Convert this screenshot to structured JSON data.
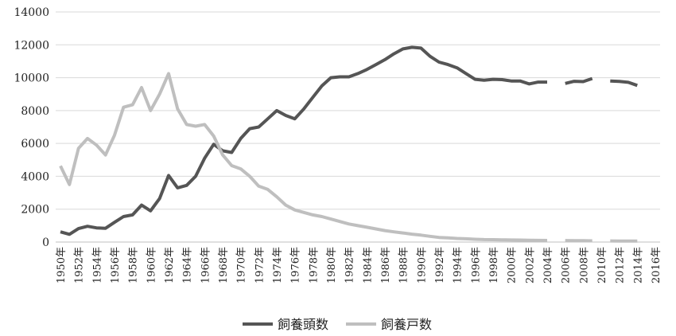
{
  "chart_data": {
    "type": "line",
    "title": "",
    "xlabel": "",
    "ylabel": "",
    "ylim": [
      0,
      14000
    ],
    "yticks": [
      0,
      2000,
      4000,
      6000,
      8000,
      10000,
      12000,
      14000
    ],
    "ytick_labels": [
      "0",
      "2000",
      "4000",
      "6000",
      "8000",
      "10000",
      "12000",
      "14000"
    ],
    "x": [
      "1950年",
      "1951年",
      "1952年",
      "1953年",
      "1954年",
      "1955年",
      "1956年",
      "1957年",
      "1958年",
      "1959年",
      "1960年",
      "1961年",
      "1962年",
      "1963年",
      "1964年",
      "1965年",
      "1966年",
      "1967年",
      "1968年",
      "1969年",
      "1970年",
      "1971年",
      "1972年",
      "1973年",
      "1974年",
      "1975年",
      "1976年",
      "1977年",
      "1978年",
      "1979年",
      "1980年",
      "1981年",
      "1982年",
      "1983年",
      "1984年",
      "1985年",
      "1986年",
      "1987年",
      "1988年",
      "1989年",
      "1990年",
      "1991年",
      "1992年",
      "1993年",
      "1994年",
      "1995年",
      "1996年",
      "1997年",
      "1998年",
      "1999年",
      "2000年",
      "2001年",
      "2002年",
      "2003年",
      "2004年",
      "2005年",
      "2006年",
      "2007年",
      "2008年",
      "2009年",
      "2010年",
      "2011年",
      "2012年",
      "2013年",
      "2014年",
      "2015年",
      "2016年"
    ],
    "xtick_labels": [
      "1950年",
      "1952年",
      "1954年",
      "1956年",
      "1958年",
      "1960年",
      "1962年",
      "1964年",
      "1966年",
      "1968年",
      "1970年",
      "1972年",
      "1974年",
      "1976年",
      "1978年",
      "1980年",
      "1982年",
      "1984年",
      "1986年",
      "1988年",
      "1990年",
      "1992年",
      "1994年",
      "1996年",
      "1998年",
      "2000年",
      "2002年",
      "2004年",
      "2006年",
      "2008年",
      "2010年",
      "2012年",
      "2014年",
      "2016年"
    ],
    "series": [
      {
        "name": "飼養頭数",
        "color": "#555555",
        "values": [
          620,
          470,
          820,
          960,
          860,
          840,
          1200,
          1550,
          1650,
          2250,
          1900,
          2650,
          4050,
          3300,
          3450,
          4000,
          5100,
          5950,
          5550,
          5450,
          6300,
          6900,
          7000,
          7500,
          8000,
          7700,
          7500,
          8100,
          8800,
          9500,
          10000,
          10050,
          10050,
          10250,
          10500,
          10800,
          11100,
          11450,
          11750,
          11850,
          11800,
          11300,
          10950,
          10800,
          10600,
          10250,
          9900,
          9850,
          9900,
          9880,
          9800,
          9800,
          9620,
          9730,
          9730,
          null,
          9650,
          9780,
          9760,
          9950,
          null,
          9800,
          9770,
          9720,
          9530,
          null,
          null
        ]
      },
      {
        "name": "飼養戸数",
        "color": "#bfbfbf",
        "values": [
          4630,
          3500,
          5700,
          6300,
          5900,
          5300,
          6500,
          8200,
          8350,
          9400,
          8000,
          9000,
          10250,
          8100,
          7150,
          7050,
          7150,
          6450,
          5300,
          4650,
          4450,
          4000,
          3400,
          3200,
          2750,
          2250,
          1950,
          1800,
          1650,
          1550,
          1400,
          1250,
          1100,
          1000,
          900,
          800,
          700,
          620,
          550,
          480,
          420,
          350,
          280,
          250,
          220,
          200,
          170,
          150,
          145,
          135,
          125,
          120,
          110,
          100,
          95,
          null,
          90,
          85,
          80,
          75,
          null,
          70,
          65,
          60,
          58,
          null,
          null
        ]
      }
    ],
    "legend": {
      "placement": "bottom",
      "entries": [
        "飼養頭数",
        "飼養戸数"
      ]
    },
    "grid": true
  }
}
